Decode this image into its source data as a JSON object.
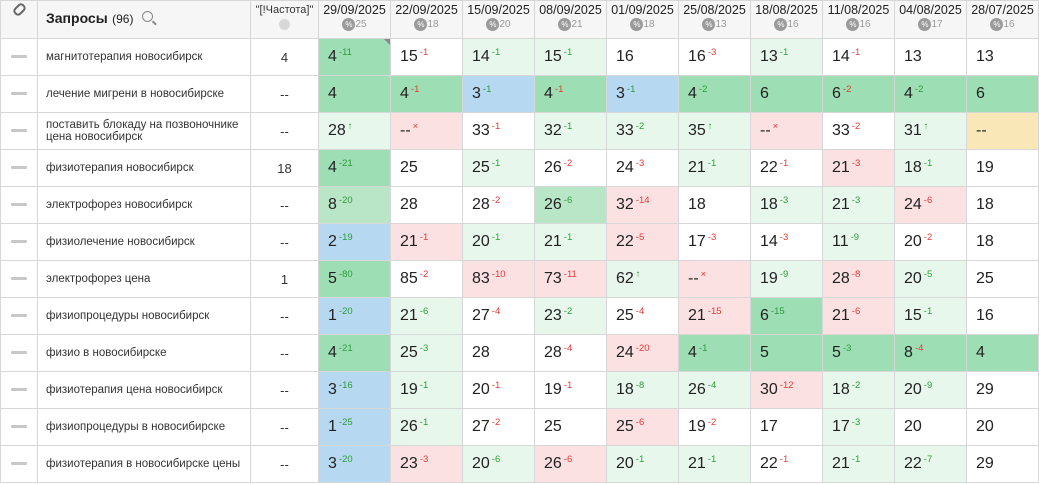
{
  "header": {
    "query_title": "Запросы",
    "query_count": "(96)",
    "freq_label": "\"[!Частота]\"",
    "dates": [
      {
        "date": "29/09/2025",
        "pct": "25"
      },
      {
        "date": "22/09/2025",
        "pct": "18"
      },
      {
        "date": "15/09/2025",
        "pct": "20"
      },
      {
        "date": "08/09/2025",
        "pct": "21"
      },
      {
        "date": "01/09/2025",
        "pct": "18"
      },
      {
        "date": "25/08/2025",
        "pct": "13"
      },
      {
        "date": "18/08/2025",
        "pct": "16"
      },
      {
        "date": "11/08/2025",
        "pct": "16"
      },
      {
        "date": "04/08/2025",
        "pct": "17"
      },
      {
        "date": "28/07/2025",
        "pct": "16"
      }
    ]
  },
  "rows": [
    {
      "query": "магнитотерапия новосибирск",
      "freq": "4",
      "cells": [
        {
          "v": "4",
          "d": "-11",
          "t": "up",
          "bg": "g3",
          "c": true
        },
        {
          "v": "15",
          "d": "-1",
          "t": "down",
          "bg": "w"
        },
        {
          "v": "14",
          "d": "-1",
          "t": "up",
          "bg": "g1"
        },
        {
          "v": "15",
          "d": "-1",
          "t": "up",
          "bg": "g1"
        },
        {
          "v": "16",
          "d": "",
          "t": "",
          "bg": "w"
        },
        {
          "v": "16",
          "d": "-3",
          "t": "down",
          "bg": "w"
        },
        {
          "v": "13",
          "d": "-1",
          "t": "up",
          "bg": "g1"
        },
        {
          "v": "14",
          "d": "-1",
          "t": "down",
          "bg": "w"
        },
        {
          "v": "13",
          "d": "",
          "t": "",
          "bg": "w"
        },
        {
          "v": "13",
          "d": "",
          "t": "",
          "bg": "w"
        }
      ]
    },
    {
      "query": "лечение мигрени в новосибирске",
      "freq": "--",
      "cells": [
        {
          "v": "4",
          "d": "",
          "t": "",
          "bg": "g3"
        },
        {
          "v": "4",
          "d": "-1",
          "t": "down",
          "bg": "g3"
        },
        {
          "v": "3",
          "d": "-1",
          "t": "up",
          "bg": "b"
        },
        {
          "v": "4",
          "d": "-1",
          "t": "down",
          "bg": "g3"
        },
        {
          "v": "3",
          "d": "-1",
          "t": "up",
          "bg": "b"
        },
        {
          "v": "4",
          "d": "-2",
          "t": "up",
          "bg": "g3"
        },
        {
          "v": "6",
          "d": "",
          "t": "",
          "bg": "g3"
        },
        {
          "v": "6",
          "d": "-2",
          "t": "down",
          "bg": "g3"
        },
        {
          "v": "4",
          "d": "-2",
          "t": "up",
          "bg": "g3"
        },
        {
          "v": "6",
          "d": "",
          "t": "",
          "bg": "g3"
        }
      ]
    },
    {
      "query": "поставить блокаду на позвоночнике цена новосибирск",
      "freq": "--",
      "cells": [
        {
          "v": "28",
          "d": "↑",
          "t": "up",
          "bg": "g1"
        },
        {
          "v": "--",
          "d": "×",
          "t": "down",
          "bg": "r"
        },
        {
          "v": "33",
          "d": "-1",
          "t": "down",
          "bg": "w"
        },
        {
          "v": "32",
          "d": "-1",
          "t": "up",
          "bg": "g1"
        },
        {
          "v": "33",
          "d": "-2",
          "t": "up",
          "bg": "g1"
        },
        {
          "v": "35",
          "d": "↑",
          "t": "up",
          "bg": "g1"
        },
        {
          "v": "--",
          "d": "×",
          "t": "down",
          "bg": "r"
        },
        {
          "v": "33",
          "d": "-2",
          "t": "down",
          "bg": "w"
        },
        {
          "v": "31",
          "d": "↑",
          "t": "up",
          "bg": "g1"
        },
        {
          "v": "--",
          "d": "",
          "t": "",
          "bg": "y"
        }
      ]
    },
    {
      "query": "физиотерапия новосибирск",
      "freq": "18",
      "cells": [
        {
          "v": "4",
          "d": "-21",
          "t": "up",
          "bg": "g3"
        },
        {
          "v": "25",
          "d": "",
          "t": "",
          "bg": "w"
        },
        {
          "v": "25",
          "d": "-1",
          "t": "up",
          "bg": "g1"
        },
        {
          "v": "26",
          "d": "-2",
          "t": "down",
          "bg": "w"
        },
        {
          "v": "24",
          "d": "-3",
          "t": "down",
          "bg": "w"
        },
        {
          "v": "21",
          "d": "-1",
          "t": "up",
          "bg": "g1"
        },
        {
          "v": "22",
          "d": "-1",
          "t": "down",
          "bg": "w"
        },
        {
          "v": "21",
          "d": "-3",
          "t": "down",
          "bg": "r"
        },
        {
          "v": "18",
          "d": "-1",
          "t": "up",
          "bg": "g1"
        },
        {
          "v": "19",
          "d": "",
          "t": "",
          "bg": "w"
        }
      ]
    },
    {
      "query": "электрофорез новосибирск",
      "freq": "--",
      "cells": [
        {
          "v": "8",
          "d": "-20",
          "t": "up",
          "bg": "g2"
        },
        {
          "v": "28",
          "d": "",
          "t": "",
          "bg": "w"
        },
        {
          "v": "28",
          "d": "-2",
          "t": "down",
          "bg": "w"
        },
        {
          "v": "26",
          "d": "-6",
          "t": "up",
          "bg": "g2"
        },
        {
          "v": "32",
          "d": "-14",
          "t": "down",
          "bg": "r"
        },
        {
          "v": "18",
          "d": "",
          "t": "",
          "bg": "w"
        },
        {
          "v": "18",
          "d": "-3",
          "t": "up",
          "bg": "g1"
        },
        {
          "v": "21",
          "d": "-3",
          "t": "up",
          "bg": "g1"
        },
        {
          "v": "24",
          "d": "-6",
          "t": "down",
          "bg": "r"
        },
        {
          "v": "18",
          "d": "",
          "t": "",
          "bg": "w"
        }
      ]
    },
    {
      "query": "физиолечение новосибирск",
      "freq": "--",
      "cells": [
        {
          "v": "2",
          "d": "-19",
          "t": "up",
          "bg": "b"
        },
        {
          "v": "21",
          "d": "-1",
          "t": "down",
          "bg": "r"
        },
        {
          "v": "20",
          "d": "-1",
          "t": "up",
          "bg": "g1"
        },
        {
          "v": "21",
          "d": "-1",
          "t": "up",
          "bg": "g1"
        },
        {
          "v": "22",
          "d": "-5",
          "t": "down",
          "bg": "r"
        },
        {
          "v": "17",
          "d": "-3",
          "t": "down",
          "bg": "w"
        },
        {
          "v": "14",
          "d": "-3",
          "t": "down",
          "bg": "w"
        },
        {
          "v": "11",
          "d": "-9",
          "t": "up",
          "bg": "g1"
        },
        {
          "v": "20",
          "d": "-2",
          "t": "down",
          "bg": "w"
        },
        {
          "v": "18",
          "d": "",
          "t": "",
          "bg": "w"
        }
      ]
    },
    {
      "query": "электрофорез цена",
      "freq": "1",
      "cells": [
        {
          "v": "5",
          "d": "-80",
          "t": "up",
          "bg": "g3"
        },
        {
          "v": "85",
          "d": "-2",
          "t": "down",
          "bg": "w"
        },
        {
          "v": "83",
          "d": "-10",
          "t": "down",
          "bg": "r"
        },
        {
          "v": "73",
          "d": "-11",
          "t": "down",
          "bg": "r"
        },
        {
          "v": "62",
          "d": "↑",
          "t": "up",
          "bg": "g1"
        },
        {
          "v": "--",
          "d": "×",
          "t": "down",
          "bg": "r"
        },
        {
          "v": "19",
          "d": "-9",
          "t": "up",
          "bg": "g1"
        },
        {
          "v": "28",
          "d": "-8",
          "t": "down",
          "bg": "r"
        },
        {
          "v": "20",
          "d": "-5",
          "t": "up",
          "bg": "g1"
        },
        {
          "v": "25",
          "d": "",
          "t": "",
          "bg": "w"
        }
      ]
    },
    {
      "query": "физиопроцедуры новосибирск",
      "freq": "--",
      "cells": [
        {
          "v": "1",
          "d": "-20",
          "t": "up",
          "bg": "b"
        },
        {
          "v": "21",
          "d": "-6",
          "t": "up",
          "bg": "g1"
        },
        {
          "v": "27",
          "d": "-4",
          "t": "down",
          "bg": "w"
        },
        {
          "v": "23",
          "d": "-2",
          "t": "up",
          "bg": "g1"
        },
        {
          "v": "25",
          "d": "-4",
          "t": "down",
          "bg": "w"
        },
        {
          "v": "21",
          "d": "-15",
          "t": "down",
          "bg": "r"
        },
        {
          "v": "6",
          "d": "-15",
          "t": "up",
          "bg": "g3"
        },
        {
          "v": "21",
          "d": "-6",
          "t": "down",
          "bg": "r"
        },
        {
          "v": "15",
          "d": "-1",
          "t": "up",
          "bg": "g1"
        },
        {
          "v": "16",
          "d": "",
          "t": "",
          "bg": "w"
        }
      ]
    },
    {
      "query": "физио в новосибирске",
      "freq": "--",
      "cells": [
        {
          "v": "4",
          "d": "-21",
          "t": "up",
          "bg": "g3"
        },
        {
          "v": "25",
          "d": "-3",
          "t": "up",
          "bg": "g1"
        },
        {
          "v": "28",
          "d": "",
          "t": "",
          "bg": "w"
        },
        {
          "v": "28",
          "d": "-4",
          "t": "down",
          "bg": "w"
        },
        {
          "v": "24",
          "d": "-20",
          "t": "down",
          "bg": "r"
        },
        {
          "v": "4",
          "d": "-1",
          "t": "up",
          "bg": "g3"
        },
        {
          "v": "5",
          "d": "",
          "t": "",
          "bg": "g3"
        },
        {
          "v": "5",
          "d": "-3",
          "t": "up",
          "bg": "g3"
        },
        {
          "v": "8",
          "d": "-4",
          "t": "down",
          "bg": "g3"
        },
        {
          "v": "4",
          "d": "",
          "t": "",
          "bg": "g3"
        }
      ]
    },
    {
      "query": "физиотерапия цена новосибирск",
      "freq": "--",
      "cells": [
        {
          "v": "3",
          "d": "-16",
          "t": "up",
          "bg": "b"
        },
        {
          "v": "19",
          "d": "-1",
          "t": "up",
          "bg": "g1"
        },
        {
          "v": "20",
          "d": "-1",
          "t": "down",
          "bg": "w"
        },
        {
          "v": "19",
          "d": "-1",
          "t": "down",
          "bg": "w"
        },
        {
          "v": "18",
          "d": "-8",
          "t": "up",
          "bg": "g1"
        },
        {
          "v": "26",
          "d": "-4",
          "t": "up",
          "bg": "g1"
        },
        {
          "v": "30",
          "d": "-12",
          "t": "down",
          "bg": "r"
        },
        {
          "v": "18",
          "d": "-2",
          "t": "up",
          "bg": "g1"
        },
        {
          "v": "20",
          "d": "-9",
          "t": "up",
          "bg": "g1"
        },
        {
          "v": "29",
          "d": "",
          "t": "",
          "bg": "w"
        }
      ]
    },
    {
      "query": "физиопроцедуры в новосибирске",
      "freq": "--",
      "cells": [
        {
          "v": "1",
          "d": "-25",
          "t": "up",
          "bg": "b"
        },
        {
          "v": "26",
          "d": "-1",
          "t": "up",
          "bg": "g1"
        },
        {
          "v": "27",
          "d": "-2",
          "t": "down",
          "bg": "w"
        },
        {
          "v": "25",
          "d": "",
          "t": "",
          "bg": "w"
        },
        {
          "v": "25",
          "d": "-6",
          "t": "down",
          "bg": "r"
        },
        {
          "v": "19",
          "d": "-2",
          "t": "down",
          "bg": "w"
        },
        {
          "v": "17",
          "d": "",
          "t": "",
          "bg": "w"
        },
        {
          "v": "17",
          "d": "-3",
          "t": "up",
          "bg": "g1"
        },
        {
          "v": "20",
          "d": "",
          "t": "",
          "bg": "w"
        },
        {
          "v": "20",
          "d": "",
          "t": "",
          "bg": "w"
        }
      ]
    },
    {
      "query": "физиотерапия в новосибирске цены",
      "freq": "--",
      "cells": [
        {
          "v": "3",
          "d": "-20",
          "t": "up",
          "bg": "b"
        },
        {
          "v": "23",
          "d": "-3",
          "t": "down",
          "bg": "r"
        },
        {
          "v": "20",
          "d": "-6",
          "t": "up",
          "bg": "g1"
        },
        {
          "v": "26",
          "d": "-6",
          "t": "down",
          "bg": "r"
        },
        {
          "v": "20",
          "d": "-1",
          "t": "up",
          "bg": "g1"
        },
        {
          "v": "21",
          "d": "-1",
          "t": "up",
          "bg": "g1"
        },
        {
          "v": "22",
          "d": "-1",
          "t": "down",
          "bg": "w"
        },
        {
          "v": "21",
          "d": "-1",
          "t": "up",
          "bg": "g1"
        },
        {
          "v": "22",
          "d": "-7",
          "t": "up",
          "bg": "g1"
        },
        {
          "v": "29",
          "d": "",
          "t": "",
          "bg": "w"
        }
      ]
    }
  ]
}
